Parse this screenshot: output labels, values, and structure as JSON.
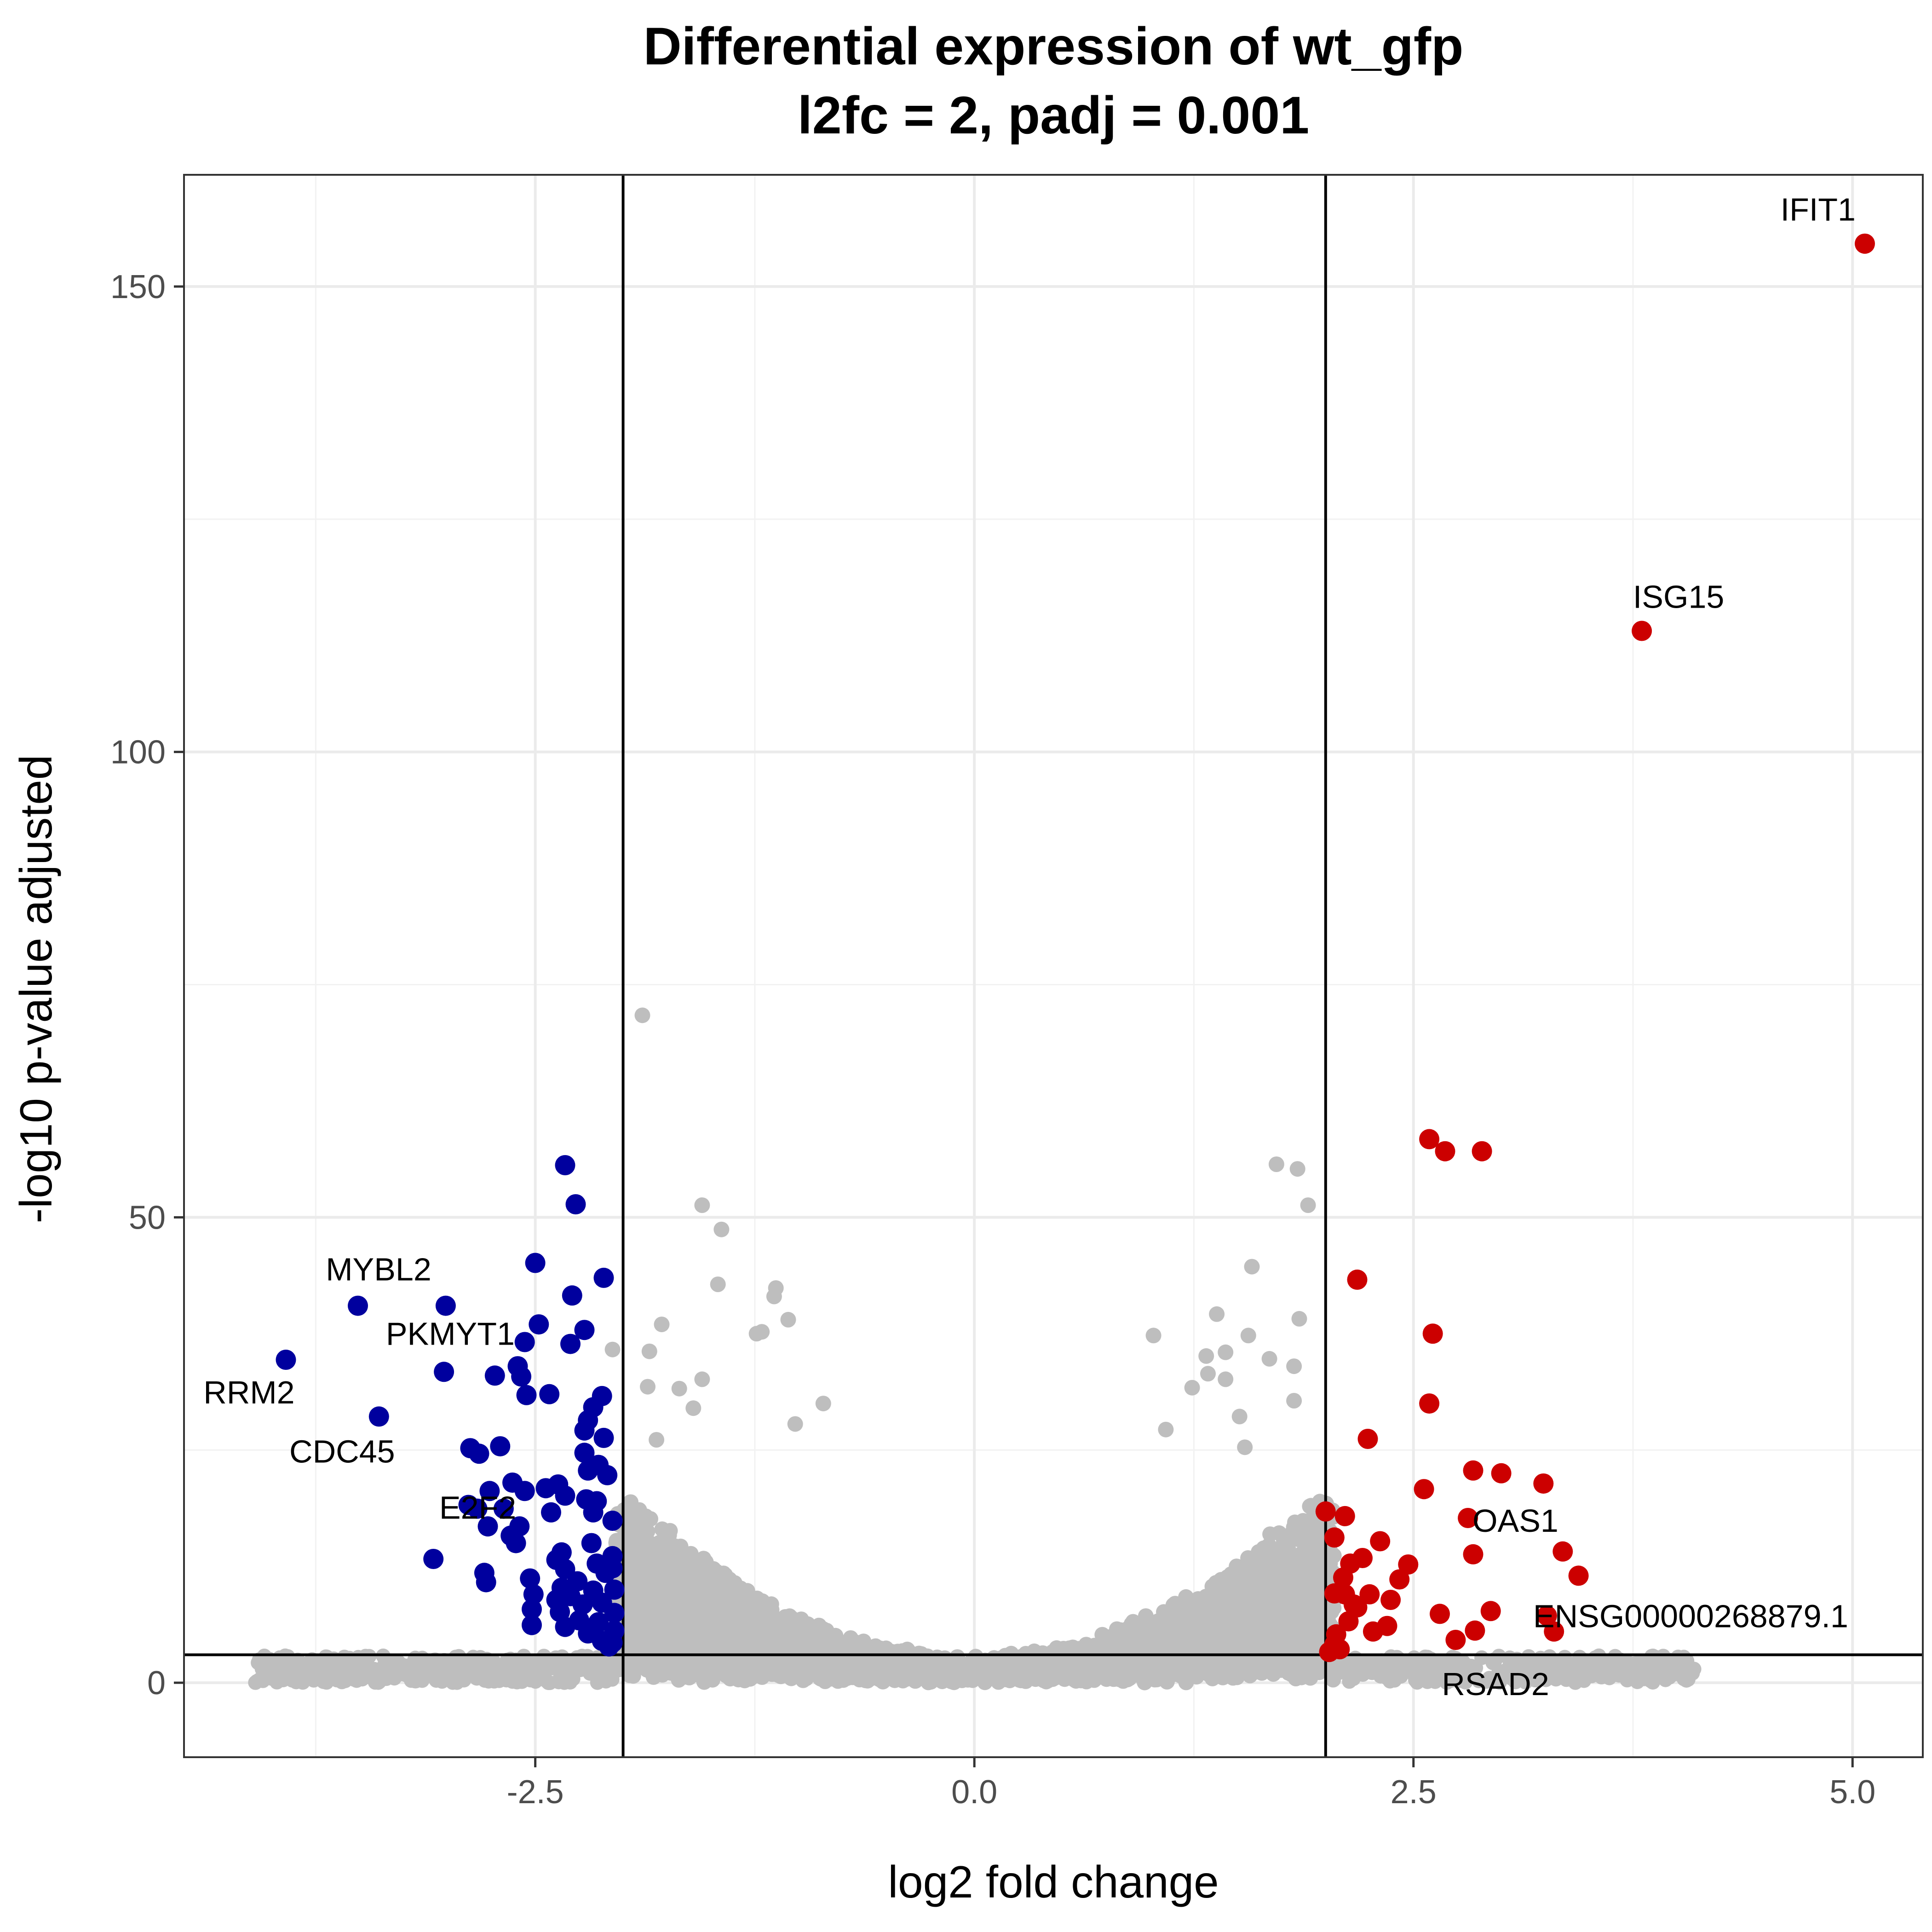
{
  "chart_data": {
    "type": "scatter",
    "title": "Differential expression of wt_gfp",
    "subtitle": "l2fc = 2, padj = 0.001",
    "xlabel": "log2 fold change",
    "ylabel": "-log10 p-value adjusted",
    "xlim": [
      -4.5,
      5.4
    ],
    "ylim": [
      -8,
      162
    ],
    "x_ticks": [
      {
        "value": -2.5,
        "label": "-2.5"
      },
      {
        "value": 0.0,
        "label": "0.0"
      },
      {
        "value": 2.5,
        "label": "2.5"
      },
      {
        "value": 5.0,
        "label": "5.0"
      }
    ],
    "y_ticks": [
      {
        "value": 0,
        "label": "0"
      },
      {
        "value": 50,
        "label": "50"
      },
      {
        "value": 100,
        "label": "100"
      },
      {
        "value": 150,
        "label": "150"
      }
    ],
    "grid": true,
    "thresholds": {
      "l2fc": 2,
      "neg_log10_padj": 3
    },
    "colors": {
      "up": "#cc0000",
      "down": "#00009e",
      "not_significant": "#bebebe"
    },
    "series": [
      {
        "group": "up",
        "points": [
          [
            5.07,
            154.6
          ],
          [
            3.8,
            113
          ],
          [
            2.59,
            58.4
          ],
          [
            2.68,
            57.1
          ],
          [
            2.89,
            57.1
          ],
          [
            2.18,
            43.3
          ],
          [
            2.61,
            37.5
          ],
          [
            2.59,
            30
          ],
          [
            2.24,
            26.2
          ],
          [
            2.84,
            22.8
          ],
          [
            3.0,
            22.5
          ],
          [
            3.24,
            21.4
          ],
          [
            2.56,
            20.8
          ],
          [
            2.0,
            18.4
          ],
          [
            2.11,
            17.9
          ],
          [
            2.81,
            17.7
          ],
          [
            2.05,
            15.6
          ],
          [
            2.31,
            15.2
          ],
          [
            3.35,
            14.1
          ],
          [
            2.84,
            13.8
          ],
          [
            2.21,
            13.4
          ],
          [
            2.14,
            12.8
          ],
          [
            2.47,
            12.7
          ],
          [
            2.1,
            11.3
          ],
          [
            3.44,
            11.5
          ],
          [
            2.42,
            11.1
          ],
          [
            2.05,
            9.6
          ],
          [
            2.11,
            9.5
          ],
          [
            2.25,
            9.5
          ],
          [
            2.37,
            8.9
          ],
          [
            2.16,
            8.4
          ],
          [
            2.18,
            8.1
          ],
          [
            2.94,
            7.7
          ],
          [
            2.65,
            7.4
          ],
          [
            3.26,
            7.2
          ],
          [
            2.13,
            6.6
          ],
          [
            2.35,
            6.1
          ],
          [
            2.85,
            5.6
          ],
          [
            2.27,
            5.5
          ],
          [
            3.3,
            5.5
          ],
          [
            2.06,
            5.2
          ],
          [
            2.74,
            4.6
          ],
          [
            2.05,
            4.1
          ],
          [
            2.02,
            3.3
          ],
          [
            2.08,
            3.6
          ]
        ]
      },
      {
        "group": "down",
        "points": [
          [
            -2.33,
            55.6
          ],
          [
            -2.27,
            51.4
          ],
          [
            -2.5,
            45.1
          ],
          [
            -2.11,
            43.5
          ],
          [
            -2.29,
            41.6
          ],
          [
            -3.51,
            40.5
          ],
          [
            -3.01,
            40.5
          ],
          [
            -2.48,
            38.5
          ],
          [
            -2.22,
            37.9
          ],
          [
            -2.56,
            36.6
          ],
          [
            -2.3,
            36.4
          ],
          [
            -3.92,
            34.7
          ],
          [
            -2.6,
            34
          ],
          [
            -3.02,
            33.4
          ],
          [
            -2.73,
            33
          ],
          [
            -2.58,
            32.9
          ],
          [
            -2.42,
            31
          ],
          [
            -2.55,
            30.9
          ],
          [
            -2.12,
            30.8
          ],
          [
            -2.17,
            29.6
          ],
          [
            -3.39,
            28.6
          ],
          [
            -2.2,
            28.2
          ],
          [
            -2.22,
            27.1
          ],
          [
            -2.11,
            26.3
          ],
          [
            -2.87,
            25.2
          ],
          [
            -2.7,
            25.4
          ],
          [
            -2.82,
            24.6
          ],
          [
            -2.22,
            24.7
          ],
          [
            -2.14,
            23.4
          ],
          [
            -2.09,
            22.3
          ],
          [
            -2.2,
            22.8
          ],
          [
            -2.63,
            21.5
          ],
          [
            -2.37,
            21.3
          ],
          [
            -2.44,
            20.9
          ],
          [
            -2.56,
            20.6
          ],
          [
            -2.76,
            20.6
          ],
          [
            -2.21,
            19.7
          ],
          [
            -2.15,
            19.5
          ],
          [
            -2.33,
            20.1
          ],
          [
            -2.88,
            19.1
          ],
          [
            -2.83,
            18.7
          ],
          [
            -2.68,
            18.7
          ],
          [
            -2.41,
            18.3
          ],
          [
            -2.17,
            18.3
          ],
          [
            -2.06,
            17.4
          ],
          [
            -2.77,
            16.8
          ],
          [
            -2.59,
            16.8
          ],
          [
            -2.64,
            15.8
          ],
          [
            -2.61,
            15
          ],
          [
            -2.18,
            15
          ],
          [
            -2.35,
            14
          ],
          [
            -2.06,
            13.6
          ],
          [
            -3.08,
            13.3
          ],
          [
            -2.38,
            13.2
          ],
          [
            -2.15,
            12.8
          ],
          [
            -2.33,
            12.2
          ],
          [
            -2.1,
            11.8
          ],
          [
            -2.06,
            12.3
          ],
          [
            -2.79,
            11.8
          ],
          [
            -2.53,
            11.2
          ],
          [
            -2.26,
            10.9
          ],
          [
            -2.35,
            10.2
          ],
          [
            -2.05,
            10
          ],
          [
            -2.17,
            9.9
          ],
          [
            -2.78,
            10.8
          ],
          [
            -2.51,
            9.5
          ],
          [
            -2.3,
            9.3
          ],
          [
            -2.38,
            8.9
          ],
          [
            -2.23,
            8.4
          ],
          [
            -2.12,
            8.6
          ],
          [
            -2.52,
            7.9
          ],
          [
            -2.36,
            7.6
          ],
          [
            -2.05,
            7.5
          ],
          [
            -2.25,
            6.7
          ],
          [
            -2.14,
            6.5
          ],
          [
            -2.52,
            6.2
          ],
          [
            -2.33,
            6
          ],
          [
            -2.05,
            5.6
          ],
          [
            -2.2,
            5.3
          ],
          [
            -2.12,
            4.5
          ],
          [
            -2.08,
            3.9
          ],
          [
            -2.06,
            4.3
          ]
        ]
      },
      {
        "group": "not_significant",
        "points": [
          [
            -1.89,
            71.7
          ],
          [
            1.72,
            55.7
          ],
          [
            1.84,
            55.2
          ],
          [
            -1.55,
            51.3
          ],
          [
            1.9,
            51.3
          ],
          [
            -1.44,
            48.7
          ],
          [
            1.58,
            44.7
          ],
          [
            -1.46,
            42.8
          ],
          [
            -1.13,
            42.4
          ],
          [
            -1.14,
            41.5
          ],
          [
            1.38,
            39.6
          ],
          [
            1.85,
            39.1
          ],
          [
            -1.06,
            39
          ],
          [
            -1.78,
            38.5
          ],
          [
            -1.21,
            37.7
          ],
          [
            -1.24,
            37.5
          ],
          [
            1.02,
            37.3
          ],
          [
            1.56,
            37.3
          ],
          [
            -1.85,
            35.6
          ],
          [
            -2.06,
            35.8
          ],
          [
            1.32,
            35.1
          ],
          [
            1.43,
            35.5
          ],
          [
            1.68,
            34.8
          ],
          [
            1.82,
            34
          ],
          [
            -1.86,
            31.8
          ],
          [
            1.43,
            32.6
          ],
          [
            1.33,
            33.2
          ],
          [
            -1.55,
            32.6
          ],
          [
            1.24,
            31.7
          ],
          [
            -1.68,
            31.6
          ],
          [
            1.82,
            30.3
          ],
          [
            -0.86,
            30
          ],
          [
            -1.6,
            29.5
          ],
          [
            1.51,
            28.6
          ],
          [
            -1.02,
            27.8
          ],
          [
            1.09,
            27.2
          ],
          [
            -1.81,
            26.1
          ],
          [
            1.54,
            25.3
          ]
        ]
      }
    ],
    "annotations": [
      {
        "text": "IFIT1",
        "x": 5.07,
        "y": 154.6
      },
      {
        "text": "ISG15",
        "x": 3.8,
        "y": 113
      },
      {
        "text": "MYBL2",
        "x": -3.51,
        "y": 40.5
      },
      {
        "text": "PKMYT1",
        "x": -3.01,
        "y": 40.5
      },
      {
        "text": "RRM2",
        "x": -3.92,
        "y": 34.7
      },
      {
        "text": "CDC45",
        "x": -3.39,
        "y": 28.6
      },
      {
        "text": "E2F2",
        "x": -2.88,
        "y": 19.1
      },
      {
        "text": "OAS1",
        "x": 2.81,
        "y": 17.7
      },
      {
        "text": "ENSG00000268879.1",
        "x": 3.26,
        "y": 7.2
      },
      {
        "text": "RSAD2",
        "x": 2.74,
        "y": 4.6
      }
    ]
  }
}
